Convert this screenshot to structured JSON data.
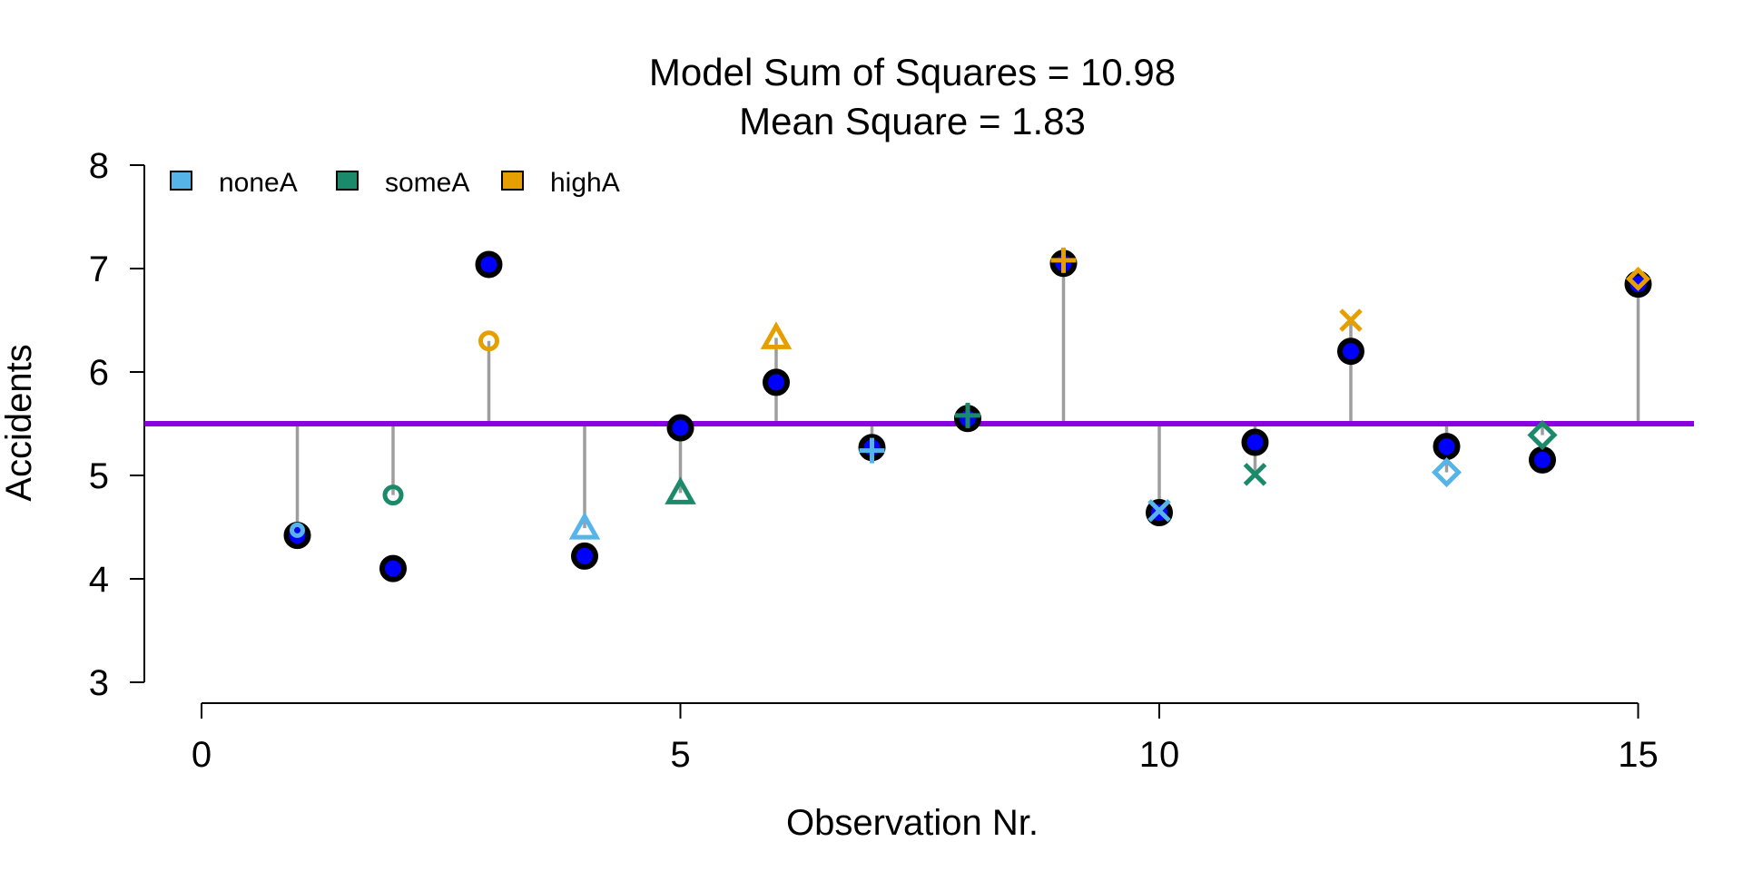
{
  "chart_data": {
    "type": "scatter",
    "title_lines": [
      "Model Sum of Squares = 10.98",
      "Mean Square = 1.83"
    ],
    "xlabel": "Observation Nr.",
    "ylabel": "Accidents",
    "xlim": [
      0,
      15
    ],
    "ylim": [
      3,
      8
    ],
    "xticks": [
      0,
      5,
      10,
      15
    ],
    "yticks": [
      3,
      4,
      5,
      6,
      7,
      8
    ],
    "grand_mean": 5.5,
    "grand_mean_color": "#8B00E0",
    "legend": [
      {
        "name": "noneA",
        "color": "#56B4E9"
      },
      {
        "name": "someA",
        "color": "#1B8A6B"
      },
      {
        "name": "highA",
        "color": "#E69F00"
      }
    ],
    "observed_color": "#0000FF",
    "observations": [
      {
        "x": 1,
        "observed": 4.42,
        "group": "noneA",
        "group_mean": 4.47,
        "symbol": "circle-small"
      },
      {
        "x": 2,
        "observed": 4.1,
        "group": "someA",
        "group_mean": 4.81,
        "symbol": "circle"
      },
      {
        "x": 3,
        "observed": 7.04,
        "group": "highA",
        "group_mean": 6.3,
        "symbol": "circle"
      },
      {
        "x": 4,
        "observed": 4.22,
        "group": "noneA",
        "group_mean": 4.49,
        "symbol": "triangle"
      },
      {
        "x": 5,
        "observed": 5.46,
        "group": "someA",
        "group_mean": 4.83,
        "symbol": "triangle"
      },
      {
        "x": 6,
        "observed": 5.9,
        "group": "highA",
        "group_mean": 6.33,
        "symbol": "triangle"
      },
      {
        "x": 7,
        "observed": 5.27,
        "group": "noneA",
        "group_mean": 5.24,
        "symbol": "plus"
      },
      {
        "x": 8,
        "observed": 5.55,
        "group": "someA",
        "group_mean": 5.58,
        "symbol": "plus"
      },
      {
        "x": 9,
        "observed": 7.05,
        "group": "highA",
        "group_mean": 7.08,
        "symbol": "plus"
      },
      {
        "x": 10,
        "observed": 4.64,
        "group": "noneA",
        "group_mean": 4.66,
        "symbol": "cross"
      },
      {
        "x": 11,
        "observed": 5.32,
        "group": "someA",
        "group_mean": 5.01,
        "symbol": "cross"
      },
      {
        "x": 12,
        "observed": 6.2,
        "group": "highA",
        "group_mean": 6.5,
        "symbol": "cross"
      },
      {
        "x": 13,
        "observed": 5.28,
        "group": "noneA",
        "group_mean": 5.03,
        "symbol": "diamond"
      },
      {
        "x": 14,
        "observed": 5.15,
        "group": "someA",
        "group_mean": 5.39,
        "symbol": "diamond"
      },
      {
        "x": 15,
        "observed": 6.85,
        "group": "highA",
        "group_mean": 6.9,
        "symbol": "diamond-small"
      }
    ]
  }
}
